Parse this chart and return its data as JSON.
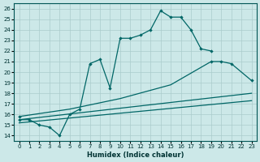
{
  "xlabel": "Humidex (Indice chaleur)",
  "bg_color": "#cce8e8",
  "grid_color": "#aacccc",
  "line_color": "#006666",
  "xlim": [
    -0.5,
    23.5
  ],
  "ylim": [
    13.5,
    26.5
  ],
  "xticks": [
    0,
    1,
    2,
    3,
    4,
    5,
    6,
    7,
    8,
    9,
    10,
    11,
    12,
    13,
    14,
    15,
    16,
    17,
    18,
    19,
    20,
    21,
    22,
    23
  ],
  "yticks": [
    14,
    15,
    16,
    17,
    18,
    19,
    20,
    21,
    22,
    23,
    24,
    25,
    26
  ],
  "line1_x": [
    0,
    1,
    2,
    3,
    4,
    5,
    6,
    7,
    8,
    9,
    10,
    11,
    12,
    13,
    14,
    15,
    16,
    17,
    18,
    19
  ],
  "line1_y": [
    15.5,
    15.5,
    15.0,
    14.8,
    14.0,
    16.0,
    16.5,
    20.8,
    21.2,
    18.5,
    23.2,
    23.2,
    23.5,
    24.0,
    25.8,
    25.2,
    25.2,
    24.0,
    22.2,
    22.0
  ],
  "line2_x": [
    0,
    5,
    10,
    15,
    19,
    20,
    21,
    23
  ],
  "line2_y": [
    15.8,
    16.5,
    17.5,
    18.8,
    21.0,
    21.0,
    20.8,
    19.2
  ],
  "line2_marker_x": [
    0,
    19,
    20,
    21,
    23
  ],
  "line2_marker_y": [
    15.8,
    21.0,
    21.0,
    20.8,
    19.2
  ],
  "line3_x": [
    0,
    23
  ],
  "line3_y": [
    15.5,
    18.0
  ],
  "line4_x": [
    0,
    23
  ],
  "line4_y": [
    15.2,
    17.3
  ]
}
